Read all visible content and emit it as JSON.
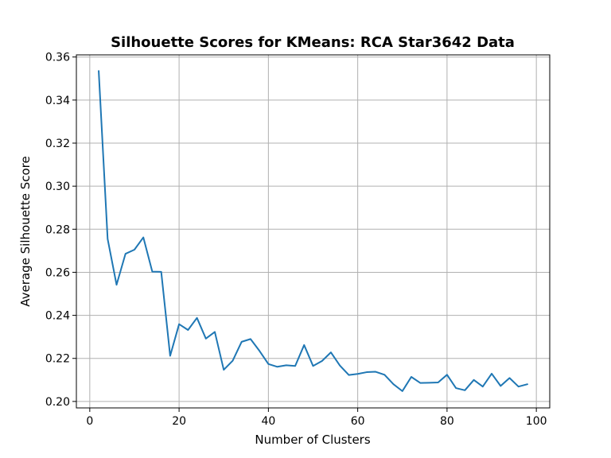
{
  "chart_data": {
    "type": "line",
    "title": "Silhouette Scores for KMeans: RCA Star3642 Data",
    "xlabel": "Number of Clusters",
    "ylabel": "Average Silhouette Score",
    "xlim": [
      -3,
      103
    ],
    "ylim": [
      0.197,
      0.361
    ],
    "xticks": [
      0,
      20,
      40,
      60,
      80,
      100
    ],
    "xtick_labels": [
      "0",
      "20",
      "40",
      "60",
      "80",
      "100"
    ],
    "yticks": [
      0.2,
      0.22,
      0.24,
      0.26,
      0.28,
      0.3,
      0.32,
      0.34,
      0.36
    ],
    "ytick_labels": [
      "0.20",
      "0.22",
      "0.24",
      "0.26",
      "0.28",
      "0.30",
      "0.32",
      "0.34",
      "0.36"
    ],
    "grid": true,
    "color": "#1f77b4",
    "x": [
      2,
      4,
      6,
      8,
      10,
      12,
      14,
      16,
      18,
      20,
      22,
      24,
      26,
      28,
      30,
      32,
      34,
      36,
      38,
      40,
      42,
      44,
      46,
      48,
      50,
      52,
      54,
      56,
      58,
      60,
      62,
      64,
      66,
      68,
      70,
      72,
      74,
      76,
      78,
      80,
      82,
      84,
      86,
      88,
      90,
      92,
      94,
      96,
      98
    ],
    "y": [
      0.3535,
      0.2755,
      0.2542,
      0.2686,
      0.2705,
      0.2762,
      0.2603,
      0.2602,
      0.2212,
      0.2359,
      0.2332,
      0.2388,
      0.2292,
      0.2323,
      0.2147,
      0.2189,
      0.2277,
      0.229,
      0.2235,
      0.2174,
      0.2161,
      0.2168,
      0.2165,
      0.2262,
      0.2165,
      0.2188,
      0.2228,
      0.2167,
      0.2123,
      0.2128,
      0.2136,
      0.2138,
      0.2124,
      0.208,
      0.2048,
      0.2114,
      0.2086,
      0.2087,
      0.2088,
      0.2124,
      0.2062,
      0.2052,
      0.21,
      0.2069,
      0.2129,
      0.2072,
      0.2109,
      0.2069,
      0.208
    ]
  }
}
